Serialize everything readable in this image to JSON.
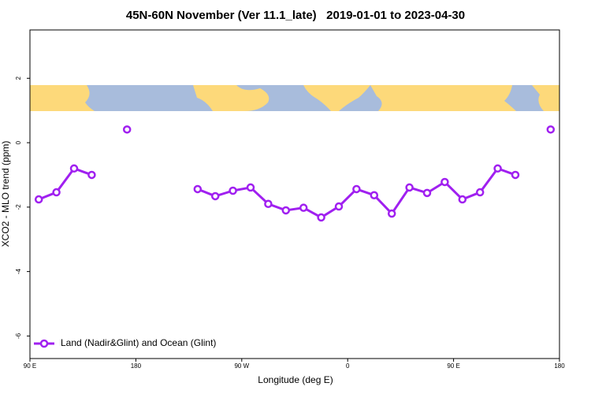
{
  "chart_data": {
    "type": "line",
    "title": "45N-60N November (Ver 11.1_late)   2019-01-01 to 2023-04-30",
    "x_label": "Longitude (deg E)",
    "y_label": "XCO2 - MLO trend (ppm)",
    "xlim": [
      90,
      540
    ],
    "ylim": [
      -6.7,
      3.5
    ],
    "xticks": [
      {
        "value": 90,
        "label": "90 E"
      },
      180,
      {
        "value": 270,
        "label": "90 W"
      },
      {
        "value": 360,
        "label": "0"
      },
      {
        "value": 450,
        "label": "90 E"
      },
      {
        "value": 540,
        "label": "180"
      }
    ],
    "yticks": [
      2,
      0,
      -2,
      -4,
      -6
    ],
    "grid": false,
    "legend_position": "bottom-left",
    "x": [
      97.5,
      112.5,
      127.5,
      142.5,
      157.5,
      172.5,
      187.5,
      232.5,
      247.5,
      262.5,
      277.5,
      292.5,
      307.5,
      322.5,
      337.5,
      352.5,
      367.5,
      382.5,
      397.5,
      412.5,
      427.5,
      442.5,
      457.5,
      472.5,
      487.5,
      502.5,
      517.5,
      532.5
    ],
    "series": [
      {
        "name": "Land (Nadir&Glint) and Ocean (Glint)",
        "color": "#a020f0",
        "values": [
          -1.76,
          -1.54,
          -0.8,
          -1.0,
          null,
          0.41,
          null,
          -1.44,
          -1.66,
          -1.49,
          -1.39,
          -1.9,
          -2.1,
          -2.02,
          -2.32,
          -1.98,
          -1.44,
          -1.63,
          -2.2,
          -1.39,
          -1.56,
          -1.22,
          -1.76,
          -1.54,
          -0.8,
          -1.0,
          null,
          0.41
        ]
      }
    ]
  }
}
